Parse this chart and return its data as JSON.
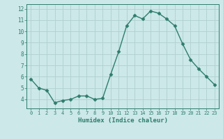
{
  "xlabel": "Humidex (Indice chaleur)",
  "x": [
    0,
    1,
    2,
    3,
    4,
    5,
    6,
    7,
    8,
    9,
    10,
    11,
    12,
    13,
    14,
    15,
    16,
    17,
    18,
    19,
    20,
    21,
    22,
    23
  ],
  "y": [
    5.8,
    5.0,
    4.8,
    3.7,
    3.9,
    4.0,
    4.3,
    4.3,
    4.0,
    4.1,
    6.2,
    8.2,
    10.5,
    11.4,
    11.1,
    11.8,
    11.6,
    11.1,
    10.5,
    8.9,
    7.5,
    6.7,
    6.0,
    5.3
  ],
  "line_color": "#2e7d6d",
  "marker": "D",
  "marker_size": 2.5,
  "bg_color": "#cce8e8",
  "grid_color": "#b0d0d0",
  "tick_color": "#2e7d6d",
  "label_color": "#2e7d6d",
  "ylim": [
    3.2,
    12.4
  ],
  "xlim": [
    -0.5,
    23.5
  ],
  "yticks": [
    4,
    5,
    6,
    7,
    8,
    9,
    10,
    11,
    12
  ],
  "xticks": [
    0,
    1,
    2,
    3,
    4,
    5,
    6,
    7,
    8,
    9,
    10,
    11,
    12,
    13,
    14,
    15,
    16,
    17,
    18,
    19,
    20,
    21,
    22,
    23
  ]
}
